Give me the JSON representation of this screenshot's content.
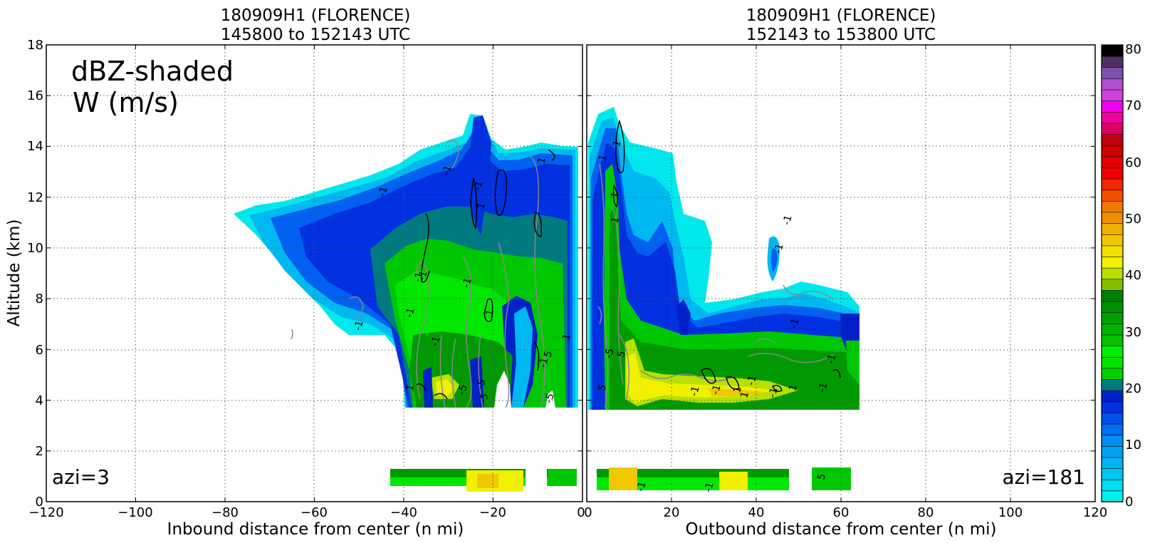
{
  "chart_data": [
    {
      "type": "heatmap",
      "title": "180909H1 (FLORENCE)",
      "subtitle": "145800 to 152143 UTC",
      "xlabel": "Inbound distance from center (n mi)",
      "ylabel": "Altitude (km)",
      "xlim": [
        -120,
        0
      ],
      "ylim": [
        0,
        18
      ],
      "x_ticks": [
        "−120",
        "−100",
        "−80",
        "−60",
        "−40",
        "−20",
        "0"
      ],
      "y_ticks": [
        "0",
        "2",
        "4",
        "6",
        "8",
        "10",
        "12",
        "14",
        "16",
        "18"
      ],
      "grid": true,
      "annotations": [
        "dBZ-shaded",
        "W (m/s)",
        "azi=3"
      ],
      "contour_labels": [
        "-1",
        "-1",
        "1",
        "-1",
        "1",
        "-1",
        "-1",
        "-1",
        "-1",
        "1",
        "-1",
        "1",
        "-1",
        "1",
        "-5",
        "-5",
        "5",
        "-5",
        "-5",
        "-1"
      ],
      "echo_top_km": 15.2,
      "echo_western_edge_nmi": -78
    },
    {
      "type": "heatmap",
      "title": "180909H1 (FLORENCE)",
      "subtitle": "152143 to 153800 UTC",
      "xlabel": "Outbound distance from center (n mi)",
      "xlim": [
        0,
        120
      ],
      "ylim": [
        0,
        18
      ],
      "x_ticks": [
        "0",
        "20",
        "40",
        "60",
        "80",
        "100",
        "120"
      ],
      "grid": true,
      "annotations": [
        "azi=181"
      ],
      "contour_labels": [
        "-1",
        "-1",
        "1",
        "1",
        "-1",
        "-1",
        "-5",
        "5",
        "5",
        "-1",
        "-1",
        "-1",
        "1",
        "-1",
        "1",
        "-1",
        "-1",
        "-1",
        "-1",
        "-1",
        "5",
        "1"
      ],
      "echo_top_km": 15.3,
      "echo_outer_edge_nmi": 65
    }
  ],
  "colorbar": {
    "label_ticks": [
      "0",
      "10",
      "20",
      "30",
      "40",
      "50",
      "60",
      "70",
      "80"
    ],
    "min": 0,
    "max": 80,
    "colors": [
      "#00f0f0",
      "#00dcf0",
      "#00c8f0",
      "#00b4f0",
      "#00a0f0",
      "#008cf0",
      "#0070f0",
      "#0050f0",
      "#0030e0",
      "#0020c8",
      "#007a80",
      "#00d000",
      "#00e400",
      "#00f000",
      "#00c000",
      "#00b400",
      "#00a000",
      "#009000",
      "#008000",
      "#80c000",
      "#b8e000",
      "#f0f000",
      "#f0e000",
      "#f0c800",
      "#f0b000",
      "#f09000",
      "#f07800",
      "#f05000",
      "#f02800",
      "#f00000",
      "#e00000",
      "#d00000",
      "#c00010",
      "#e00060",
      "#f000a0",
      "#f000f0",
      "#d040e0",
      "#b050d0",
      "#8050b0",
      "#503060",
      "#000000"
    ]
  }
}
